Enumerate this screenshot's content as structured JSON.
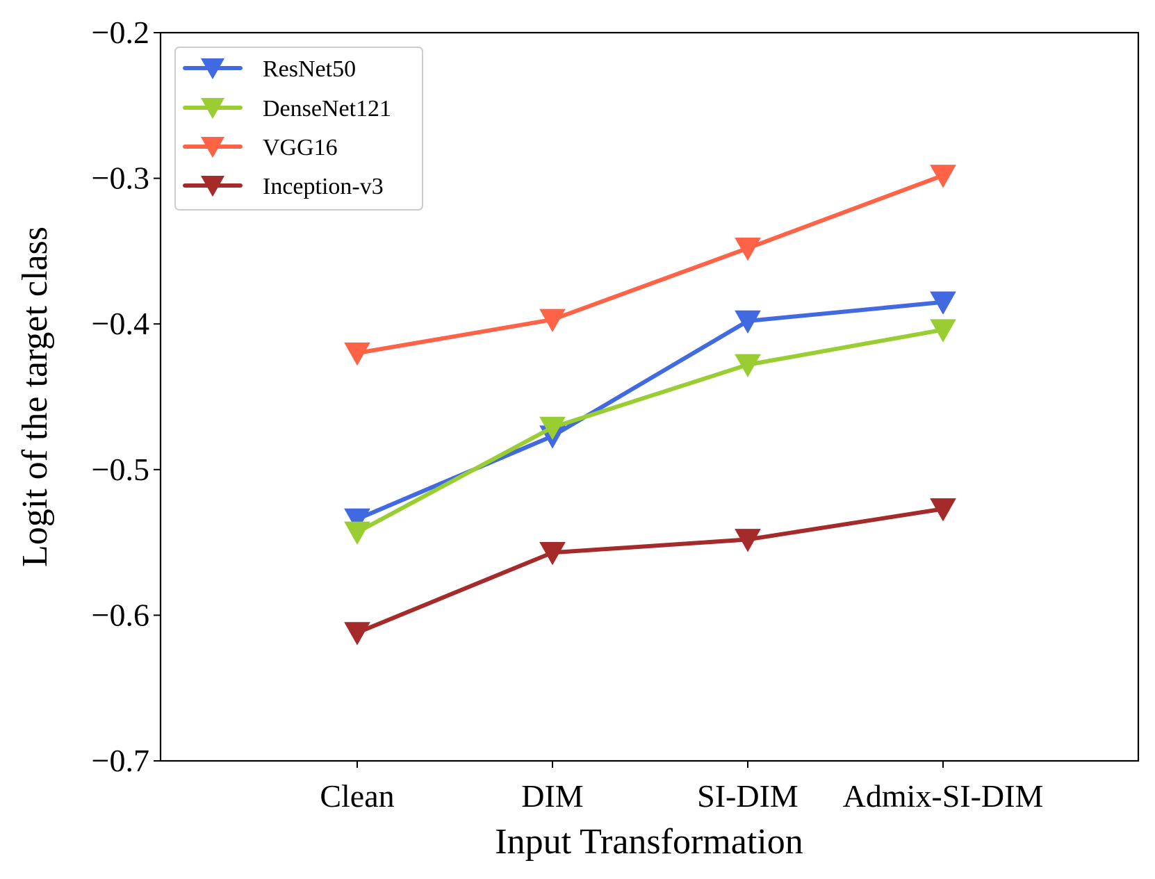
{
  "chart_data": {
    "type": "line",
    "title": "",
    "xlabel": "Input Transformation",
    "ylabel": "Logit of the target class",
    "categories": [
      "Clean",
      "DIM",
      "SI-DIM",
      "Admix-SI-DIM"
    ],
    "ylim": [
      -0.7,
      -0.2
    ],
    "yticks": [
      -0.2,
      -0.3,
      -0.4,
      -0.5,
      -0.6,
      -0.7
    ],
    "ytick_labels": [
      "−0.2",
      "−0.3",
      "−0.4",
      "−0.5",
      "−0.6",
      "−0.7"
    ],
    "grid": false,
    "legend_position": "top-left",
    "marker": "triangle-down",
    "series": [
      {
        "name": "ResNet50",
        "color": "#4169E1",
        "values": [
          -0.534,
          -0.477,
          -0.398,
          -0.385
        ]
      },
      {
        "name": "DenseNet121",
        "color": "#9ACD32",
        "values": [
          -0.543,
          -0.471,
          -0.428,
          -0.404
        ]
      },
      {
        "name": "VGG16",
        "color": "#FF6347",
        "values": [
          -0.42,
          -0.397,
          -0.348,
          -0.298
        ]
      },
      {
        "name": "Inception-v3",
        "color": "#A52A2A",
        "values": [
          -0.612,
          -0.557,
          -0.548,
          -0.527
        ]
      }
    ]
  }
}
